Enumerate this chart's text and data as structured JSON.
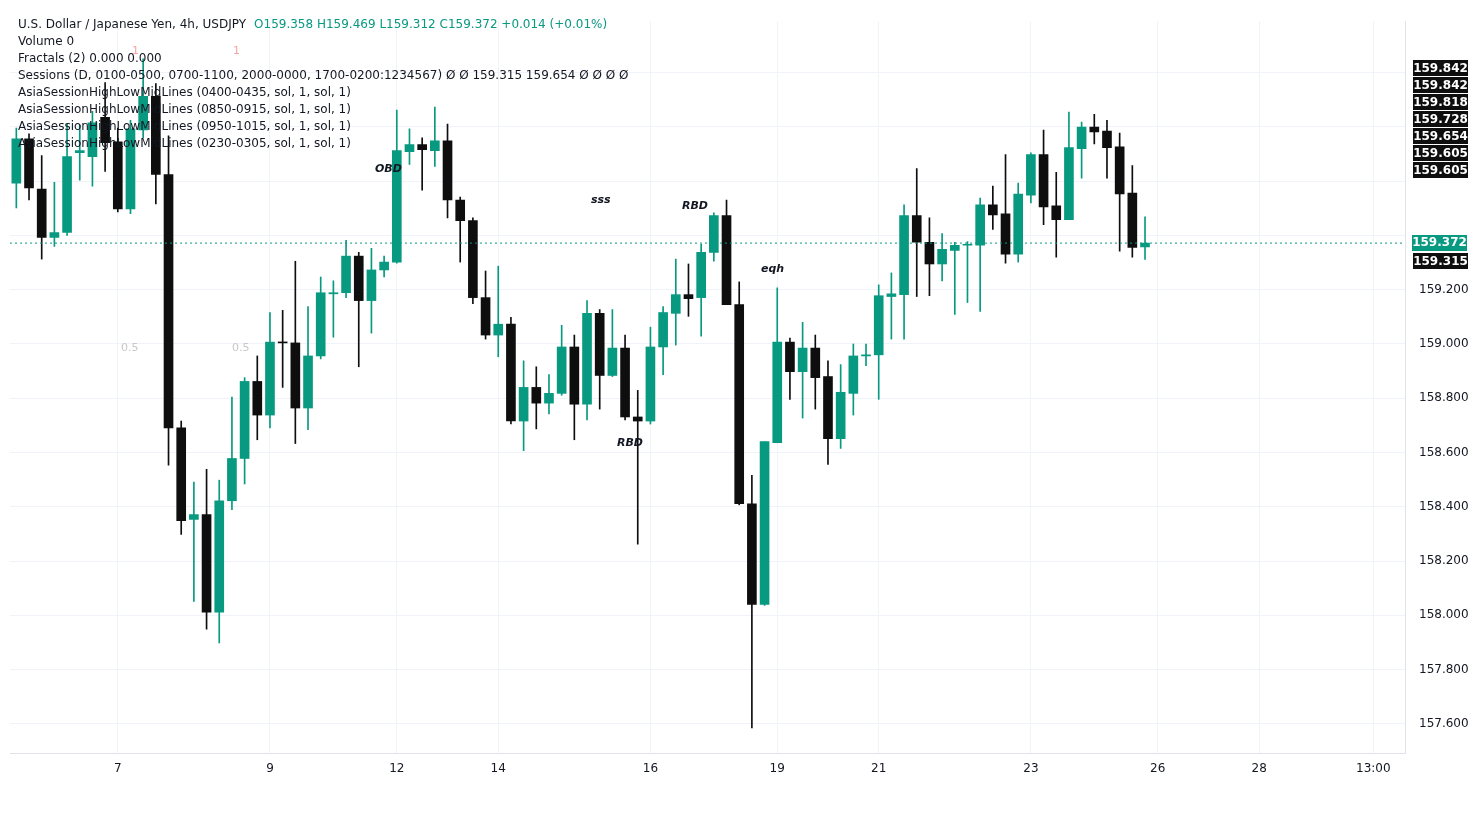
{
  "chart_data": {
    "type": "candlestick",
    "title": "U.S. Dollar / Japanese Yen, 4h, USDJPY",
    "subtitle": "O159.358 H159.469 L159.312 C159.372 +0.014 (+0.01%)",
    "categories": [
      null,
      null,
      null,
      null,
      null,
      null,
      null,
      null,
      "7",
      null,
      null,
      null,
      null,
      null,
      null,
      null,
      null,
      null,
      null,
      null,
      "9",
      null,
      null,
      null,
      null,
      null,
      null,
      null,
      null,
      null,
      "12",
      null,
      null,
      null,
      null,
      null,
      null,
      null,
      "14",
      null,
      null,
      null,
      null,
      null,
      null,
      null,
      null,
      null,
      null,
      null,
      "16",
      null,
      null,
      null,
      null,
      null,
      null,
      null,
      null,
      null,
      "19",
      null,
      null,
      null,
      null,
      null,
      null,
      null,
      "21",
      null,
      null,
      null,
      null,
      null,
      null,
      null,
      null,
      null,
      null,
      null,
      "23",
      null,
      null,
      null,
      null,
      null,
      null,
      null,
      null,
      null,
      "26",
      null,
      null,
      null,
      null,
      null,
      null,
      null,
      "28",
      null,
      null,
      null,
      null,
      null,
      null,
      null,
      null,
      "13:00",
      null,
      null
    ],
    "ohlc": [
      [
        159.593,
        159.796,
        159.502,
        159.756
      ],
      [
        159.756,
        159.775,
        159.531,
        159.575
      ],
      [
        159.571,
        159.695,
        159.313,
        159.393
      ],
      [
        159.393,
        159.596,
        159.36,
        159.411
      ],
      [
        159.411,
        159.811,
        159.4,
        159.691
      ],
      [
        159.705,
        159.807,
        159.604,
        159.713
      ],
      [
        159.691,
        159.858,
        159.582,
        159.815
      ],
      [
        159.836,
        159.964,
        159.636,
        159.742
      ],
      [
        159.745,
        159.796,
        159.487,
        159.498
      ],
      [
        159.498,
        159.825,
        159.48,
        159.793
      ],
      [
        159.789,
        160.051,
        159.76,
        159.913
      ],
      [
        159.913,
        159.96,
        159.516,
        159.625
      ],
      [
        159.625,
        159.767,
        158.553,
        158.691
      ],
      [
        158.691,
        158.716,
        158.298,
        158.349
      ],
      [
        158.353,
        158.491,
        158.051,
        158.371
      ],
      [
        158.371,
        158.538,
        157.949,
        158.011
      ],
      [
        158.011,
        158.498,
        157.898,
        158.422
      ],
      [
        158.422,
        158.804,
        158.389,
        158.578
      ],
      [
        158.578,
        158.876,
        158.484,
        158.862
      ],
      [
        158.862,
        158.956,
        158.647,
        158.738
      ],
      [
        158.738,
        159.116,
        158.691,
        159.007
      ],
      [
        159.007,
        159.124,
        158.84,
        159.004
      ],
      [
        159.004,
        159.305,
        158.633,
        158.764
      ],
      [
        158.764,
        159.138,
        158.684,
        158.956
      ],
      [
        158.956,
        159.247,
        158.945,
        159.189
      ],
      [
        159.185,
        159.233,
        159.025,
        159.189
      ],
      [
        159.189,
        159.382,
        159.171,
        159.324
      ],
      [
        159.324,
        159.338,
        158.916,
        159.16
      ],
      [
        159.16,
        159.353,
        159.04,
        159.273
      ],
      [
        159.273,
        159.324,
        159.247,
        159.302
      ],
      [
        159.302,
        159.862,
        159.298,
        159.713
      ],
      [
        159.709,
        159.793,
        159.662,
        159.735
      ],
      [
        159.735,
        159.76,
        159.567,
        159.716
      ],
      [
        159.713,
        159.873,
        159.655,
        159.749
      ],
      [
        159.749,
        159.811,
        159.465,
        159.531
      ],
      [
        159.531,
        159.542,
        159.302,
        159.455
      ],
      [
        159.455,
        159.465,
        159.149,
        159.171
      ],
      [
        159.171,
        159.269,
        159.018,
        159.033
      ],
      [
        159.033,
        159.287,
        158.953,
        159.073
      ],
      [
        159.073,
        159.098,
        158.705,
        158.716
      ],
      [
        158.716,
        158.938,
        158.607,
        158.84
      ],
      [
        158.84,
        158.916,
        158.687,
        158.782
      ],
      [
        158.782,
        158.887,
        158.742,
        158.818
      ],
      [
        158.818,
        159.069,
        158.811,
        158.989
      ],
      [
        158.989,
        159.033,
        158.647,
        158.778
      ],
      [
        158.778,
        159.16,
        158.72,
        159.113
      ],
      [
        159.113,
        159.127,
        158.76,
        158.884
      ],
      [
        158.884,
        159.127,
        158.88,
        158.985
      ],
      [
        158.985,
        159.033,
        158.72,
        158.731
      ],
      [
        158.731,
        158.829,
        158.262,
        158.716
      ],
      [
        158.716,
        159.062,
        158.705,
        158.989
      ],
      [
        158.989,
        159.138,
        158.887,
        159.116
      ],
      [
        159.113,
        159.313,
        158.996,
        159.182
      ],
      [
        159.182,
        159.295,
        159.102,
        159.167
      ],
      [
        159.171,
        159.367,
        159.029,
        159.338
      ],
      [
        159.338,
        159.484,
        159.305,
        159.473
      ],
      [
        159.473,
        159.531,
        159.145,
        159.145
      ],
      [
        159.145,
        159.229,
        158.407,
        158.411
      ],
      [
        158.411,
        158.516,
        157.585,
        158.04
      ],
      [
        158.04,
        158.64,
        158.036,
        158.64
      ],
      [
        158.636,
        159.207,
        158.636,
        159.007
      ],
      [
        159.007,
        159.022,
        158.796,
        158.898
      ],
      [
        158.898,
        159.08,
        158.727,
        158.985
      ],
      [
        158.985,
        159.033,
        158.76,
        158.876
      ],
      [
        158.88,
        158.938,
        158.556,
        158.651
      ],
      [
        158.651,
        158.924,
        158.615,
        158.822
      ],
      [
        158.818,
        159.0,
        158.738,
        158.956
      ],
      [
        158.956,
        159.0,
        158.92,
        158.96
      ],
      [
        158.96,
        159.218,
        158.796,
        159.178
      ],
      [
        159.175,
        159.262,
        159.018,
        159.185
      ],
      [
        159.182,
        159.513,
        159.018,
        159.473
      ],
      [
        159.473,
        159.647,
        159.175,
        159.375
      ],
      [
        159.375,
        159.465,
        159.178,
        159.295
      ],
      [
        159.295,
        159.407,
        159.233,
        159.349
      ],
      [
        159.345,
        159.375,
        159.109,
        159.364
      ],
      [
        159.364,
        159.378,
        159.153,
        159.367
      ],
      [
        159.364,
        159.538,
        159.12,
        159.513
      ],
      [
        159.513,
        159.582,
        159.422,
        159.476
      ],
      [
        159.48,
        159.698,
        159.298,
        159.331
      ],
      [
        159.331,
        159.593,
        159.302,
        159.553
      ],
      [
        159.549,
        159.705,
        159.52,
        159.698
      ],
      [
        159.698,
        159.789,
        159.44,
        159.505
      ],
      [
        159.509,
        159.633,
        159.32,
        159.458
      ],
      [
        159.458,
        159.855,
        159.458,
        159.724
      ],
      [
        159.72,
        159.818,
        159.611,
        159.8
      ],
      [
        159.8,
        159.847,
        159.738,
        159.782
      ],
      [
        159.785,
        159.825,
        159.611,
        159.724
      ],
      [
        159.727,
        159.778,
        159.342,
        159.553
      ],
      [
        159.556,
        159.658,
        159.32,
        159.356
      ],
      [
        159.358,
        159.469,
        159.312,
        159.372
      ],
      null,
      null,
      null,
      null,
      null,
      null,
      null,
      null,
      null,
      null,
      null,
      null,
      null,
      null,
      null,
      null,
      null,
      null,
      null,
      null
    ],
    "colors": [
      "#089981",
      "#0e0e0e",
      "#0e0e0e",
      "#089981",
      "#089981",
      "#089981",
      "#089981",
      "#0e0e0e",
      "#0e0e0e",
      "#089981",
      "#089981",
      "#0e0e0e",
      "#0e0e0e",
      "#0e0e0e",
      "#089981",
      "#0e0e0e",
      "#089981",
      "#089981",
      "#089981",
      "#0e0e0e",
      "#089981",
      "#0e0e0e",
      "#0e0e0e",
      "#089981",
      "#089981",
      "#089981",
      "#089981",
      "#0e0e0e",
      "#089981",
      "#089981",
      "#089981",
      "#089981",
      "#0e0e0e",
      "#089981",
      "#0e0e0e",
      "#0e0e0e",
      "#0e0e0e",
      "#0e0e0e",
      "#089981",
      "#0e0e0e",
      "#089981",
      "#0e0e0e",
      "#089981",
      "#089981",
      "#0e0e0e",
      "#089981",
      "#0e0e0e",
      "#089981",
      "#0e0e0e",
      "#0e0e0e",
      "#089981",
      "#089981",
      "#089981",
      "#0e0e0e",
      "#089981",
      "#089981",
      "#0e0e0e",
      "#0e0e0e",
      "#0e0e0e",
      "#089981",
      "#089981",
      "#0e0e0e",
      "#089981",
      "#0e0e0e",
      "#0e0e0e",
      "#089981",
      "#089981",
      "#089981",
      "#089981",
      "#089981",
      "#089981",
      "#0e0e0e",
      "#0e0e0e",
      "#089981",
      "#089981",
      "#089981",
      "#089981",
      "#0e0e0e",
      "#0e0e0e",
      "#089981",
      "#089981",
      "#0e0e0e",
      "#0e0e0e",
      "#089981",
      "#089981",
      "#0e0e0e",
      "#0e0e0e",
      "#0e0e0e",
      "#0e0e0e",
      "#089981",
      null,
      null,
      null,
      null,
      null,
      null,
      null,
      null,
      null,
      null,
      null,
      null,
      null,
      null,
      null,
      null,
      null,
      null,
      null,
      null
    ],
    "ylim": [
      157.49,
      160.19
    ],
    "yticks": [
      {
        "value": 157.6,
        "label": "157.600"
      },
      {
        "value": 157.8,
        "label": "157.800"
      },
      {
        "value": 158.0,
        "label": "158.000"
      },
      {
        "value": 158.2,
        "label": "158.200"
      },
      {
        "value": 158.4,
        "label": "158.400"
      },
      {
        "value": 158.6,
        "label": "158.600"
      },
      {
        "value": 158.8,
        "label": "158.800"
      },
      {
        "value": 159.0,
        "label": "159.000"
      },
      {
        "value": 159.2,
        "label": "159.200"
      },
      {
        "value": 159.4,
        "label": null
      },
      {
        "value": 159.6,
        "label": null
      },
      {
        "value": 159.8,
        "label": null
      },
      {
        "value": 160.0,
        "label": null
      }
    ],
    "grid": true,
    "legend": false,
    "ref_lines": [
      {
        "axis": "y",
        "value": 159.372,
        "label": "159.372",
        "color": "#089981",
        "line_style": "dotted"
      }
    ],
    "annotations": [
      "Volume 0",
      "Fractals (2)  0.000  0.000",
      "Sessions (D, 0100-0500, 0700-1100, 2000-0000, 1700-0200:1234567)  Ø  Ø  159.315  159.654  Ø  Ø  Ø  Ø",
      "AsiaSessionHighLowMidLines (0400-0435, sol, 1, sol, 1)",
      "AsiaSessionHighLowMidLines (0850-0915, sol, 1, sol, 1)",
      "AsiaSessionHighLowMidLines (0950-1015, sol, 1, sol, 1)",
      "AsiaSessionHighLowMidLines (0230-0305, sol, 1, sol, 1)",
      "OBD",
      "sss",
      "RBD",
      "RBD",
      "eqh",
      "1",
      "1",
      "0.5",
      "0.5",
      "159.842",
      "159.842",
      "159.818",
      "159.728",
      "159.654",
      "159.605",
      "159.605",
      "159.315"
    ]
  }
}
